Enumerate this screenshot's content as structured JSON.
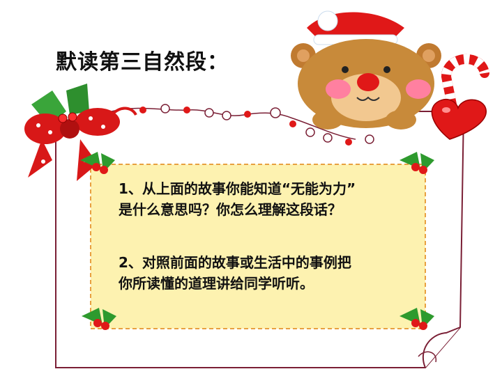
{
  "slide": {
    "title": "默读第三自然段：",
    "questions": [
      {
        "line1": "1、从上面的故事你能知道“无能为力”",
        "line2": "是什么意思吗？你怎么理解这段话？"
      },
      {
        "line1": "2、对照前面的故事或生活中的事例把",
        "line2": "你所读懂的道理讲给同学听听。"
      }
    ]
  },
  "icons": [
    "christmas-bow-icon",
    "teddy-bear-icon",
    "candy-cane-icon",
    "heart-icon",
    "holly-icon",
    "bead-garland-icon"
  ],
  "colors": {
    "card_fill": "#fdf2b0",
    "card_dash": "#e8a040",
    "frame_stroke": "#7a1f35",
    "accent_red": "#e01818",
    "holly_green": "#2e9a2e"
  }
}
